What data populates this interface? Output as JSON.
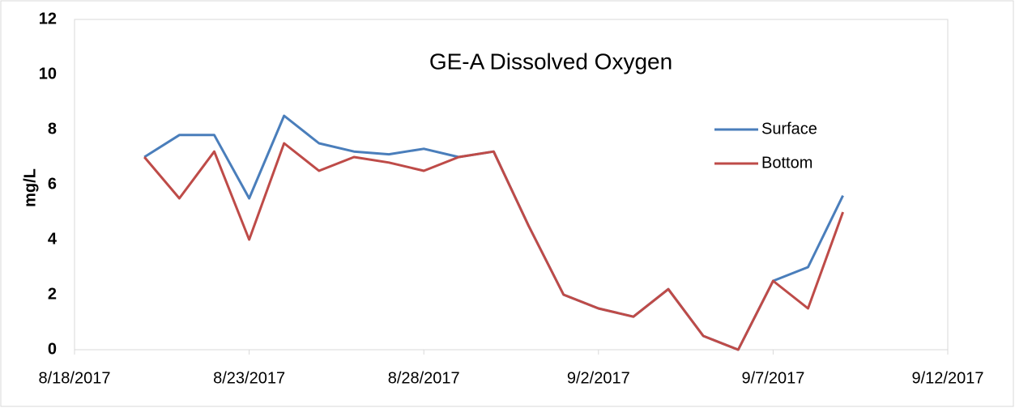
{
  "chart_data": {
    "type": "line",
    "title": "GE-A Dissolved Oxygen",
    "y_label": "mg/L",
    "x": [
      "2017-08-20",
      "2017-08-21",
      "2017-08-22",
      "2017-08-23",
      "2017-08-24",
      "2017-08-25",
      "2017-08-26",
      "2017-08-27",
      "2017-08-28",
      "2017-08-29",
      "2017-08-30",
      "2017-08-31",
      "2017-09-01",
      "2017-09-02",
      "2017-09-03",
      "2017-09-04",
      "2017-09-05",
      "2017-09-06",
      "2017-09-07",
      "2017-09-08",
      "2017-09-09"
    ],
    "series": [
      {
        "name": "Surface",
        "color": "#4a7ebb",
        "values": [
          7.0,
          7.8,
          7.8,
          5.5,
          8.5,
          7.5,
          7.2,
          7.1,
          7.3,
          7.0,
          7.2,
          4.5,
          2.0,
          1.5,
          1.2,
          2.2,
          0.5,
          0.0,
          2.5,
          3.0,
          5.6
        ]
      },
      {
        "name": "Bottom",
        "color": "#be4b48",
        "values": [
          7.0,
          5.5,
          7.2,
          4.0,
          7.5,
          6.5,
          7.0,
          6.8,
          6.5,
          7.0,
          7.2,
          4.5,
          2.0,
          1.5,
          1.2,
          2.2,
          0.5,
          0.0,
          2.5,
          1.5,
          5.0
        ]
      }
    ],
    "xlim": [
      "2017-08-18",
      "2017-09-12"
    ],
    "xticks": [
      {
        "value": "2017-08-18",
        "label": "8/18/2017"
      },
      {
        "value": "2017-08-23",
        "label": "8/23/2017"
      },
      {
        "value": "2017-08-28",
        "label": "8/28/2017"
      },
      {
        "value": "2017-09-02",
        "label": "9/2/2017"
      },
      {
        "value": "2017-09-07",
        "label": "9/7/2017"
      },
      {
        "value": "2017-09-12",
        "label": "9/12/2017"
      }
    ],
    "ylim": [
      0,
      12
    ],
    "yticks": [
      0,
      2,
      4,
      6,
      8,
      10,
      12
    ],
    "grid": false,
    "legend": "right"
  }
}
